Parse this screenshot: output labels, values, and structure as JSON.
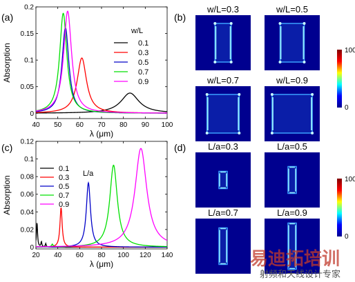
{
  "panels": {
    "a": "(a)",
    "b": "(b)",
    "c": "(c)",
    "d": "(d)"
  },
  "watermark": {
    "main": "易迪拓培训",
    "sub": "射频和天线设计专家",
    "color": "#c0392b"
  },
  "colormap": {
    "max_label": "100",
    "min_label": "0",
    "stops": [
      "#00008f",
      "#0000ff",
      "#00ffff",
      "#ffff00",
      "#ff0000",
      "#800000"
    ]
  },
  "field_maps_b": [
    {
      "title": "w/L=0.3",
      "ratio": 0.3
    },
    {
      "title": "w/L=0.5",
      "ratio": 0.5
    },
    {
      "title": "w/L=0.7",
      "ratio": 0.7
    },
    {
      "title": "w/L=0.9",
      "ratio": 0.9
    }
  ],
  "field_maps_d": [
    {
      "title": "L/a=0.3",
      "ratio": 0.3
    },
    {
      "title": "L/a=0.5",
      "ratio": 0.5
    },
    {
      "title": "L/a=0.7",
      "ratio": 0.7
    },
    {
      "title": "L/a=0.9",
      "ratio": 0.9
    }
  ],
  "chart_data": [
    {
      "type": "line",
      "id": "a",
      "xlabel": "λ (μm)",
      "ylabel": "Absorption",
      "xlim": [
        40,
        100
      ],
      "ylim": [
        -0.01,
        0.2
      ],
      "xticks": [
        40,
        50,
        60,
        70,
        80,
        90,
        100
      ],
      "yticks": [
        0,
        0.05,
        0.1,
        0.15,
        0.2
      ],
      "ytick_labels": [
        "0",
        "0.05",
        "0.1",
        "0.15",
        "0.2"
      ],
      "legend_title": "w/L",
      "legend_position": "right",
      "series": [
        {
          "name": "0.1",
          "color": "#000000",
          "peaks": [
            {
              "x": 83,
              "h": 0.038,
              "w": 5.0
            }
          ]
        },
        {
          "name": "0.3",
          "color": "#ff0000",
          "peaks": [
            {
              "x": 61,
              "h": 0.104,
              "w": 2.6
            }
          ]
        },
        {
          "name": "0.5",
          "color": "#0000c8",
          "peaks": [
            {
              "x": 53.5,
              "h": 0.161,
              "w": 1.9
            }
          ]
        },
        {
          "name": "0.7",
          "color": "#00e000",
          "peaks": [
            {
              "x": 52.5,
              "h": 0.188,
              "w": 2.0
            }
          ]
        },
        {
          "name": "0.9",
          "color": "#ff00ff",
          "peaks": [
            {
              "x": 54.5,
              "h": 0.192,
              "w": 2.2
            }
          ]
        }
      ]
    },
    {
      "type": "line",
      "id": "c",
      "xlabel": "λ (μm)",
      "ylabel": "Absorption",
      "xlim": [
        20,
        140
      ],
      "ylim": [
        -0.002,
        0.12
      ],
      "xticks": [
        20,
        40,
        60,
        80,
        100,
        120,
        140
      ],
      "yticks": [
        0,
        0.02,
        0.04,
        0.06,
        0.08,
        0.1,
        0.12
      ],
      "ytick_labels": [
        "0",
        "0.02",
        "0.04",
        "0.06",
        "0.08",
        "0.1",
        "0.12"
      ],
      "legend_title": "L/a",
      "legend_position": "top-left",
      "series": [
        {
          "name": "0.1",
          "color": "#000000",
          "peaks": [
            {
              "x": 21,
              "h": 0.028,
              "w": 0.6
            },
            {
              "x": 25,
              "h": 0.006,
              "w": 0.5
            },
            {
              "x": 29,
              "h": 0.004,
              "w": 0.5
            }
          ]
        },
        {
          "name": "0.3",
          "color": "#ff0000",
          "peaks": [
            {
              "x": 43,
              "h": 0.045,
              "w": 1.2
            }
          ]
        },
        {
          "name": "0.5",
          "color": "#0000c8",
          "peaks": [
            {
              "x": 68,
              "h": 0.073,
              "w": 2.3
            }
          ]
        },
        {
          "name": "0.7",
          "color": "#00e000",
          "peaks": [
            {
              "x": 91,
              "h": 0.093,
              "w": 4.2
            },
            {
              "x": 35,
              "h": 0.003,
              "w": 0.8
            }
          ]
        },
        {
          "name": "0.9",
          "color": "#ff00ff",
          "peaks": [
            {
              "x": 116,
              "h": 0.112,
              "w": 6.5
            }
          ]
        }
      ]
    }
  ]
}
